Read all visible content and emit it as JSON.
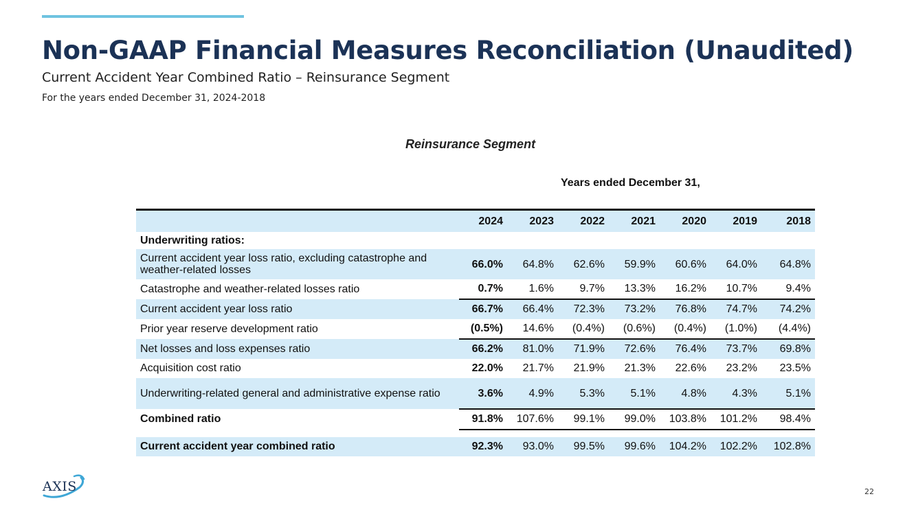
{
  "header": {
    "title": "Non-GAAP Financial Measures Reconciliation (Unaudited)",
    "subtitle": "Current Accident Year Combined Ratio – Reinsurance Segment",
    "period": "For the years ended December 31, 2024-2018"
  },
  "table": {
    "segment_title": "Reinsurance Segment",
    "years_header": "Years ended December 31,",
    "years": [
      "2024",
      "2023",
      "2022",
      "2021",
      "2020",
      "2019",
      "2018"
    ],
    "section_label": "Underwriting ratios:",
    "rows": [
      {
        "label": "Current accident year loss ratio, excluding catastrophe and weather-related losses",
        "values": [
          "66.0%",
          "64.8%",
          "62.6%",
          "59.9%",
          "60.6%",
          "64.0%",
          "64.8%"
        ]
      },
      {
        "label": "Catastrophe and weather-related losses ratio",
        "values": [
          "0.7%",
          "1.6%",
          "9.7%",
          "13.3%",
          "16.2%",
          "10.7%",
          "9.4%"
        ]
      },
      {
        "label": "Current accident year loss ratio",
        "values": [
          "66.7%",
          "66.4%",
          "72.3%",
          "73.2%",
          "76.8%",
          "74.7%",
          "74.2%"
        ]
      },
      {
        "label": "Prior year reserve development ratio",
        "values": [
          "(0.5%)",
          "14.6%",
          "(0.4%)",
          "(0.6%)",
          "(0.4%)",
          "(1.0%)",
          "(4.4%)"
        ]
      },
      {
        "label": "Net losses and loss expenses ratio",
        "values": [
          "66.2%",
          "81.0%",
          "71.9%",
          "72.6%",
          "76.4%",
          "73.7%",
          "69.8%"
        ]
      },
      {
        "label": "Acquisition cost ratio",
        "values": [
          "22.0%",
          "21.7%",
          "21.9%",
          "21.3%",
          "22.6%",
          "23.2%",
          "23.5%"
        ]
      },
      {
        "label": "Underwriting-related general and administrative expense ratio",
        "values": [
          "3.6%",
          "4.9%",
          "5.3%",
          "5.1%",
          "4.8%",
          "4.3%",
          "5.1%"
        ]
      },
      {
        "label": "Combined ratio",
        "values": [
          "91.8%",
          "107.6%",
          "99.1%",
          "99.0%",
          "103.8%",
          "101.2%",
          "98.4%"
        ]
      },
      {
        "label": "Current accident year combined ratio",
        "values": [
          "92.3%",
          "93.0%",
          "99.5%",
          "99.6%",
          "104.2%",
          "102.2%",
          "102.8%"
        ]
      }
    ]
  },
  "footer": {
    "logo_text": "AXIS",
    "page_number": "22"
  },
  "colors": {
    "title": "#1b3256",
    "accent_rule": "#6fc3e0",
    "row_shade": "#d4ebf8"
  }
}
